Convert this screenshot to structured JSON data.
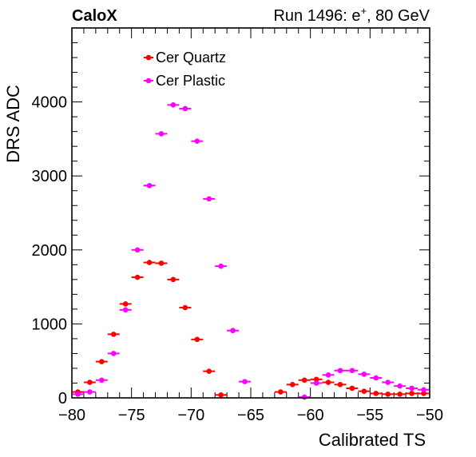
{
  "header": {
    "brand": "CaloX",
    "run_prefix": "Run 1496: e",
    "run_superscript": "+",
    "run_suffix": ", 80 GeV"
  },
  "chart_data": {
    "type": "scatter",
    "xlabel": "Calibrated TS",
    "ylabel": "DRS ADC",
    "xlim": [
      -80,
      -50
    ],
    "ylim": [
      0,
      5000
    ],
    "x_tick_labels": [
      "−80",
      "−75",
      "−70",
      "−65",
      "−60",
      "−55",
      "−50"
    ],
    "x_tick_values": [
      -80,
      -75,
      -70,
      -65,
      -60,
      -55,
      -50
    ],
    "y_tick_labels": [
      "0",
      "1000",
      "2000",
      "3000",
      "4000"
    ],
    "y_tick_values": [
      0,
      1000,
      2000,
      3000,
      4000
    ],
    "bin_width": 1,
    "legend_position": "top-left",
    "series": [
      {
        "name": "Cer Quartz",
        "color": "#ff0000",
        "x": [
          -79.5,
          -78.5,
          -77.5,
          -76.5,
          -75.5,
          -74.5,
          -73.5,
          -72.5,
          -71.5,
          -70.5,
          -69.5,
          -68.5,
          -67.5,
          -62.5,
          -61.5,
          -60.5,
          -59.5,
          -58.5,
          -57.5,
          -56.5,
          -55.5,
          -54.5,
          -53.5,
          -52.5,
          -51.5,
          -50.5
        ],
        "y": [
          80,
          210,
          490,
          860,
          1270,
          1630,
          1830,
          1820,
          1600,
          1220,
          790,
          360,
          40,
          80,
          180,
          240,
          250,
          210,
          180,
          130,
          90,
          60,
          50,
          50,
          60,
          60
        ]
      },
      {
        "name": "Cer Plastic",
        "color": "#ff00ff",
        "x": [
          -79.5,
          -78.5,
          -77.5,
          -76.5,
          -75.5,
          -74.5,
          -73.5,
          -72.5,
          -71.5,
          -70.5,
          -69.5,
          -68.5,
          -67.5,
          -66.5,
          -65.5,
          -60.5,
          -59.5,
          -58.5,
          -57.5,
          -56.5,
          -55.5,
          -54.5,
          -53.5,
          -52.5,
          -51.5,
          -50.5
        ],
        "y": [
          50,
          80,
          240,
          600,
          1190,
          2000,
          2870,
          3570,
          3960,
          3910,
          3470,
          2690,
          1780,
          910,
          220,
          10,
          200,
          310,
          370,
          370,
          320,
          270,
          210,
          160,
          130,
          110
        ]
      }
    ]
  }
}
